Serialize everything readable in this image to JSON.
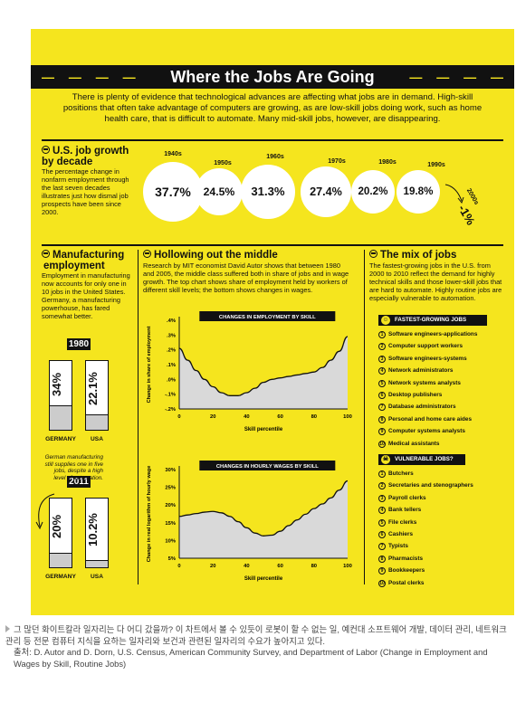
{
  "title": "Where the Jobs Are Going",
  "title_dashes": "— — — —",
  "intro": "There is plenty of evidence that technological advances are affecting what jobs are in demand. High-skill positions that often take advantage of computers are growing, as are low-skill jobs doing work, such as home health care, that is difficult to automate. Many mid-skill jobs, however, are disappearing.",
  "growth": {
    "heading_line1": "U.S. job growth",
    "heading_line2": "by decade",
    "body": "The percentage change in nonfarm employment through the last seven decades illustrates just how dismal job prospects have been since 2000.",
    "decades": [
      "1940s",
      "1950s",
      "1960s",
      "1970s",
      "1980s",
      "1990s"
    ],
    "labels": [
      "37.7%",
      "24.5%",
      "31.3%",
      "27.4%",
      "20.2%",
      "19.8%"
    ],
    "last_decade": "2000s",
    "last_label": "-1%"
  },
  "manufacturing": {
    "heading_line1": "Manufacturing",
    "heading_line2": "employment",
    "body": "Employment in manufacturing now accounts for only one in 10 jobs in the United States. Germany, a manufacturing powerhouse, has fared somewhat better.",
    "year1": "1980",
    "year2": "2011",
    "germany": "GERMANY",
    "usa": "USA",
    "note": "German manufacturing still supplies one in five jobs, despite a high level of automation.",
    "v1980_germany": "34%",
    "v1980_usa": "22.1%",
    "v2011_germany": "20%",
    "v2011_usa": "10.2%"
  },
  "hollowing": {
    "heading": "Hollowing out the middle",
    "body": "Research by MIT economist David Autor shows that between 1980 and 2005, the middle class suffered both in share of jobs and in wage growth. The top chart shows share of employment held by workers of different skill levels; the bottom shows changes in wages."
  },
  "mix": {
    "heading": "The mix of jobs",
    "body": "The fastest-growing jobs in the U.S. from 2000 to 2010 reflect the demand for highly technical skills and those lower-skill jobs that are hard to automate. Highly routine jobs are especially vulnerable to automation.",
    "fastest_label": "FASTEST-GROWING JOBS",
    "fastest": [
      "Software engineers-applications",
      "Computer support workers",
      "Software engineers-systems",
      "Network administrators",
      "Network systems analysts",
      "Desktop publishers",
      "Database administrators",
      "Personal and home care aides",
      "Computer systems analysts",
      "Medical assistants"
    ],
    "vulnerable_label": "VULNERABLE JOBS?",
    "vulnerable": [
      "Butchers",
      "Secretaries and stenographers",
      "Payroll clerks",
      "Bank tellers",
      "File clerks",
      "Cashiers",
      "Typists",
      "Pharmacists",
      "Bookkeepers",
      "Postal clerks"
    ]
  },
  "caption": {
    "line1": "그 많던 화이트칼라 일자리는 다 어디 갔을까? 이 차트에서 볼 수 있듯이 로봇이 할 수 없는 일, 예컨대 소프트웨어 개발, 데이터 관리, 네트워크 관리 등 전문 컴퓨터 지식을 요하는 일자리와 보건과 관련된 일자리의 수요가 높아지고 있다.",
    "line2": "출처: D. Autor and D. Dorn, U.S. Census, American Community Survey, and Department of Labor (Change in Employment and Wages by Skill, Routine Jobs)"
  },
  "colors": {
    "background": "#f5e51e",
    "ink": "#111111",
    "fill_gray": "#cccccc"
  },
  "chart_data": [
    {
      "type": "bar",
      "title": "U.S. job growth by decade",
      "categories": [
        "1940s",
        "1950s",
        "1960s",
        "1970s",
        "1980s",
        "1990s",
        "2000s"
      ],
      "values": [
        37.7,
        24.5,
        31.3,
        27.4,
        20.2,
        19.8,
        -1
      ],
      "unit": "%"
    },
    {
      "type": "bar",
      "title": "Manufacturing employment",
      "categories": [
        "GERMANY",
        "USA"
      ],
      "series": [
        {
          "name": "1980",
          "values": [
            34,
            22.1
          ]
        },
        {
          "name": "2011",
          "values": [
            20,
            10.2
          ]
        }
      ],
      "unit": "%"
    },
    {
      "type": "area",
      "title": "CHANGES IN EMPLOYMENT BY SKILL",
      "xlabel": "Skill percentile",
      "ylabel": "Change in share of employment",
      "xlim": [
        0,
        100
      ],
      "ylim": [
        -0.2,
        0.4
      ],
      "xticks": [
        "0",
        "20",
        "40",
        "60",
        "80",
        "100"
      ],
      "yticks": [
        ".4%",
        ".3%",
        ".2%",
        ".1%",
        ".0%",
        "-.1%",
        "-.2%"
      ],
      "x": [
        0,
        5,
        10,
        15,
        20,
        25,
        30,
        35,
        40,
        45,
        50,
        55,
        60,
        65,
        70,
        75,
        80,
        85,
        90,
        95,
        100
      ],
      "y": [
        0.21,
        0.13,
        0.06,
        0.0,
        -0.05,
        -0.09,
        -0.11,
        -0.11,
        -0.09,
        -0.06,
        -0.02,
        0.0,
        0.01,
        0.02,
        0.03,
        0.04,
        0.05,
        0.08,
        0.13,
        0.19,
        0.29
      ]
    },
    {
      "type": "area",
      "title": "CHANGES IN HOURLY WAGES BY SKILL",
      "xlabel": "Skill percentile",
      "ylabel": "Change in real logarithm of hourly wage",
      "xlim": [
        0,
        100
      ],
      "ylim": [
        5,
        30
      ],
      "xticks": [
        "0",
        "20",
        "40",
        "60",
        "80",
        "100"
      ],
      "yticks": [
        "30%",
        "25%",
        "20%",
        "15%",
        "10%",
        "5%"
      ],
      "x": [
        0,
        5,
        10,
        15,
        20,
        25,
        30,
        35,
        40,
        45,
        50,
        55,
        60,
        65,
        70,
        75,
        80,
        85,
        90,
        95,
        100
      ],
      "y": [
        16.8,
        17.2,
        17.6,
        18.0,
        18.2,
        17.8,
        16.8,
        15.3,
        13.6,
        12.1,
        11.3,
        11.5,
        12.6,
        14.2,
        15.8,
        17.4,
        19.0,
        20.3,
        22.0,
        24.2,
        26.8
      ]
    }
  ]
}
